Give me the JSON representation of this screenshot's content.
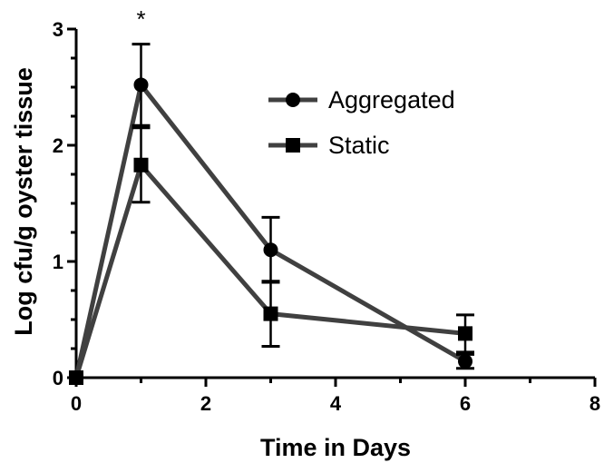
{
  "chart_data": {
    "type": "line",
    "title": "",
    "xlabel": "Time in Days",
    "ylabel": "Log cfu/g oyster tissue",
    "xlim": [
      0,
      8
    ],
    "ylim": [
      0,
      3
    ],
    "xticks": [
      0,
      2,
      4,
      6,
      8
    ],
    "yticks": [
      0,
      1,
      2,
      3
    ],
    "grid": false,
    "legend_position": "top-right",
    "series": [
      {
        "name": "Aggregated",
        "marker": "circle",
        "color": "#404040",
        "x": [
          0,
          1,
          3,
          6
        ],
        "y": [
          0,
          2.52,
          1.1,
          0.14
        ],
        "error": [
          0,
          0.35,
          0.28,
          0.06
        ]
      },
      {
        "name": "Static",
        "marker": "square",
        "color": "#404040",
        "x": [
          0,
          1,
          3,
          6
        ],
        "y": [
          0,
          1.83,
          0.55,
          0.38
        ],
        "error": [
          0,
          0.32,
          0.28,
          0.16
        ]
      }
    ],
    "annotations": [
      {
        "text": "*",
        "x": 1,
        "y": 3.0
      }
    ]
  }
}
